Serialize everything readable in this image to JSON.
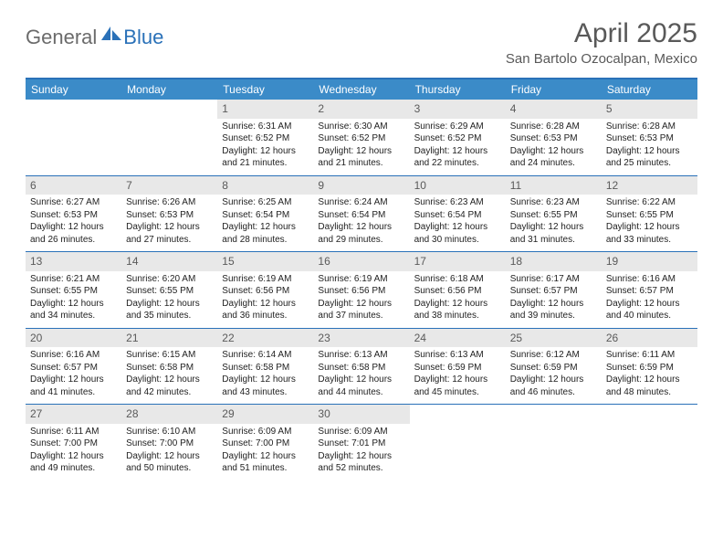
{
  "logo": {
    "general": "General",
    "blue": "Blue"
  },
  "title": {
    "month": "April 2025",
    "location": "San Bartolo Ozocalpan, Mexico"
  },
  "colors": {
    "header_bg": "#3b8bc8",
    "border": "#2a71b8",
    "daynum_bg": "#e8e8e8",
    "text_muted": "#595959",
    "logo_gray": "#6b6b6b",
    "logo_blue": "#2a71b8"
  },
  "day_headers": [
    "Sunday",
    "Monday",
    "Tuesday",
    "Wednesday",
    "Thursday",
    "Friday",
    "Saturday"
  ],
  "weeks": [
    [
      {
        "empty": true
      },
      {
        "empty": true
      },
      {
        "num": "1",
        "sunrise": "Sunrise: 6:31 AM",
        "sunset": "Sunset: 6:52 PM",
        "daylight": "Daylight: 12 hours and 21 minutes."
      },
      {
        "num": "2",
        "sunrise": "Sunrise: 6:30 AM",
        "sunset": "Sunset: 6:52 PM",
        "daylight": "Daylight: 12 hours and 21 minutes."
      },
      {
        "num": "3",
        "sunrise": "Sunrise: 6:29 AM",
        "sunset": "Sunset: 6:52 PM",
        "daylight": "Daylight: 12 hours and 22 minutes."
      },
      {
        "num": "4",
        "sunrise": "Sunrise: 6:28 AM",
        "sunset": "Sunset: 6:53 PM",
        "daylight": "Daylight: 12 hours and 24 minutes."
      },
      {
        "num": "5",
        "sunrise": "Sunrise: 6:28 AM",
        "sunset": "Sunset: 6:53 PM",
        "daylight": "Daylight: 12 hours and 25 minutes."
      }
    ],
    [
      {
        "num": "6",
        "sunrise": "Sunrise: 6:27 AM",
        "sunset": "Sunset: 6:53 PM",
        "daylight": "Daylight: 12 hours and 26 minutes."
      },
      {
        "num": "7",
        "sunrise": "Sunrise: 6:26 AM",
        "sunset": "Sunset: 6:53 PM",
        "daylight": "Daylight: 12 hours and 27 minutes."
      },
      {
        "num": "8",
        "sunrise": "Sunrise: 6:25 AM",
        "sunset": "Sunset: 6:54 PM",
        "daylight": "Daylight: 12 hours and 28 minutes."
      },
      {
        "num": "9",
        "sunrise": "Sunrise: 6:24 AM",
        "sunset": "Sunset: 6:54 PM",
        "daylight": "Daylight: 12 hours and 29 minutes."
      },
      {
        "num": "10",
        "sunrise": "Sunrise: 6:23 AM",
        "sunset": "Sunset: 6:54 PM",
        "daylight": "Daylight: 12 hours and 30 minutes."
      },
      {
        "num": "11",
        "sunrise": "Sunrise: 6:23 AM",
        "sunset": "Sunset: 6:55 PM",
        "daylight": "Daylight: 12 hours and 31 minutes."
      },
      {
        "num": "12",
        "sunrise": "Sunrise: 6:22 AM",
        "sunset": "Sunset: 6:55 PM",
        "daylight": "Daylight: 12 hours and 33 minutes."
      }
    ],
    [
      {
        "num": "13",
        "sunrise": "Sunrise: 6:21 AM",
        "sunset": "Sunset: 6:55 PM",
        "daylight": "Daylight: 12 hours and 34 minutes."
      },
      {
        "num": "14",
        "sunrise": "Sunrise: 6:20 AM",
        "sunset": "Sunset: 6:55 PM",
        "daylight": "Daylight: 12 hours and 35 minutes."
      },
      {
        "num": "15",
        "sunrise": "Sunrise: 6:19 AM",
        "sunset": "Sunset: 6:56 PM",
        "daylight": "Daylight: 12 hours and 36 minutes."
      },
      {
        "num": "16",
        "sunrise": "Sunrise: 6:19 AM",
        "sunset": "Sunset: 6:56 PM",
        "daylight": "Daylight: 12 hours and 37 minutes."
      },
      {
        "num": "17",
        "sunrise": "Sunrise: 6:18 AM",
        "sunset": "Sunset: 6:56 PM",
        "daylight": "Daylight: 12 hours and 38 minutes."
      },
      {
        "num": "18",
        "sunrise": "Sunrise: 6:17 AM",
        "sunset": "Sunset: 6:57 PM",
        "daylight": "Daylight: 12 hours and 39 minutes."
      },
      {
        "num": "19",
        "sunrise": "Sunrise: 6:16 AM",
        "sunset": "Sunset: 6:57 PM",
        "daylight": "Daylight: 12 hours and 40 minutes."
      }
    ],
    [
      {
        "num": "20",
        "sunrise": "Sunrise: 6:16 AM",
        "sunset": "Sunset: 6:57 PM",
        "daylight": "Daylight: 12 hours and 41 minutes."
      },
      {
        "num": "21",
        "sunrise": "Sunrise: 6:15 AM",
        "sunset": "Sunset: 6:58 PM",
        "daylight": "Daylight: 12 hours and 42 minutes."
      },
      {
        "num": "22",
        "sunrise": "Sunrise: 6:14 AM",
        "sunset": "Sunset: 6:58 PM",
        "daylight": "Daylight: 12 hours and 43 minutes."
      },
      {
        "num": "23",
        "sunrise": "Sunrise: 6:13 AM",
        "sunset": "Sunset: 6:58 PM",
        "daylight": "Daylight: 12 hours and 44 minutes."
      },
      {
        "num": "24",
        "sunrise": "Sunrise: 6:13 AM",
        "sunset": "Sunset: 6:59 PM",
        "daylight": "Daylight: 12 hours and 45 minutes."
      },
      {
        "num": "25",
        "sunrise": "Sunrise: 6:12 AM",
        "sunset": "Sunset: 6:59 PM",
        "daylight": "Daylight: 12 hours and 46 minutes."
      },
      {
        "num": "26",
        "sunrise": "Sunrise: 6:11 AM",
        "sunset": "Sunset: 6:59 PM",
        "daylight": "Daylight: 12 hours and 48 minutes."
      }
    ],
    [
      {
        "num": "27",
        "sunrise": "Sunrise: 6:11 AM",
        "sunset": "Sunset: 7:00 PM",
        "daylight": "Daylight: 12 hours and 49 minutes."
      },
      {
        "num": "28",
        "sunrise": "Sunrise: 6:10 AM",
        "sunset": "Sunset: 7:00 PM",
        "daylight": "Daylight: 12 hours and 50 minutes."
      },
      {
        "num": "29",
        "sunrise": "Sunrise: 6:09 AM",
        "sunset": "Sunset: 7:00 PM",
        "daylight": "Daylight: 12 hours and 51 minutes."
      },
      {
        "num": "30",
        "sunrise": "Sunrise: 6:09 AM",
        "sunset": "Sunset: 7:01 PM",
        "daylight": "Daylight: 12 hours and 52 minutes."
      },
      {
        "empty": true
      },
      {
        "empty": true
      },
      {
        "empty": true
      }
    ]
  ]
}
